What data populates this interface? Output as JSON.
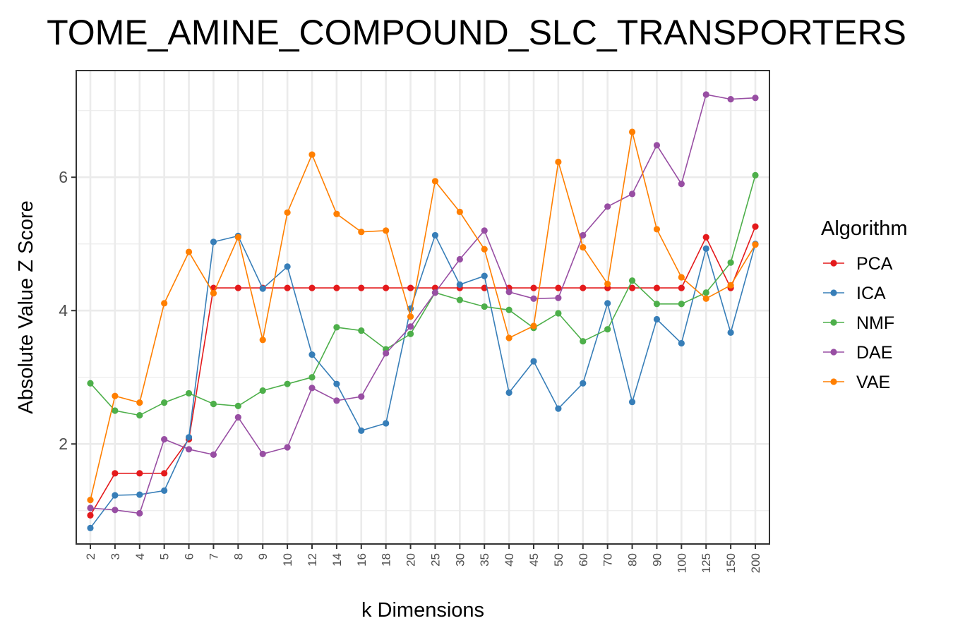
{
  "chart_data": {
    "type": "line",
    "title": "TOME_AMINE_COMPOUND_SLC_TRANSPORTERS",
    "xlabel": "k Dimensions",
    "ylabel": "Absolute Value Z Score",
    "categories": [
      "2",
      "3",
      "4",
      "5",
      "6",
      "7",
      "8",
      "9",
      "10",
      "12",
      "14",
      "16",
      "18",
      "20",
      "25",
      "30",
      "35",
      "40",
      "45",
      "50",
      "60",
      "70",
      "80",
      "90",
      "100",
      "125",
      "150",
      "200"
    ],
    "ylim": [
      0.5,
      7.6
    ],
    "yticks": [
      2,
      4,
      6
    ],
    "grid": true,
    "legend": {
      "title": "Algorithm",
      "position": "right"
    },
    "series": [
      {
        "name": "PCA",
        "color": "#E41A1C",
        "values": [
          0.93,
          1.56,
          1.56,
          1.56,
          2.07,
          4.34,
          4.34,
          4.34,
          4.34,
          4.34,
          4.34,
          4.34,
          4.34,
          4.34,
          4.34,
          4.34,
          4.34,
          4.34,
          4.34,
          4.34,
          4.34,
          4.34,
          4.34,
          4.34,
          4.34,
          5.1,
          4.34,
          5.26
        ]
      },
      {
        "name": "ICA",
        "color": "#377EB8",
        "values": [
          0.74,
          1.23,
          1.24,
          1.3,
          2.1,
          5.03,
          5.12,
          4.33,
          4.66,
          3.34,
          2.9,
          2.2,
          2.31,
          4.03,
          5.13,
          4.39,
          4.52,
          2.77,
          3.24,
          2.53,
          2.91,
          4.11,
          2.63,
          3.87,
          3.51,
          4.93,
          3.67,
          5.0
        ]
      },
      {
        "name": "NMF",
        "color": "#4DAF4A",
        "values": [
          2.91,
          2.5,
          2.43,
          2.62,
          2.76,
          2.6,
          2.57,
          2.8,
          2.9,
          3.0,
          3.75,
          3.7,
          3.42,
          3.65,
          4.27,
          4.16,
          4.06,
          4.01,
          3.74,
          3.96,
          3.54,
          3.72,
          4.45,
          4.1,
          4.1,
          4.27,
          4.72,
          6.03
        ]
      },
      {
        "name": "DAE",
        "color": "#984EA3",
        "values": [
          1.04,
          1.01,
          0.96,
          2.07,
          1.92,
          1.84,
          2.4,
          1.85,
          1.95,
          2.84,
          2.65,
          2.71,
          3.36,
          3.76,
          4.27,
          4.77,
          5.2,
          4.28,
          4.18,
          4.19,
          5.13,
          5.56,
          5.75,
          6.48,
          5.9,
          7.24,
          7.17,
          7.19
        ]
      },
      {
        "name": "VAE",
        "color": "#FF7F00",
        "values": [
          1.16,
          2.72,
          2.62,
          4.11,
          4.88,
          4.26,
          5.1,
          3.56,
          5.47,
          6.34,
          5.45,
          5.18,
          5.2,
          3.91,
          5.94,
          5.48,
          4.92,
          3.59,
          3.77,
          6.23,
          4.95,
          4.4,
          6.68,
          5.22,
          4.5,
          4.18,
          4.38,
          4.99
        ]
      }
    ]
  }
}
